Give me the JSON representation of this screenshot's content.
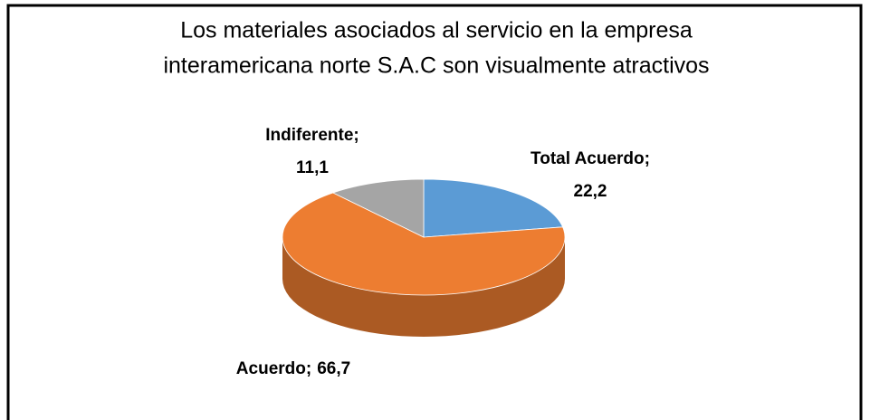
{
  "chart_data": {
    "type": "pie",
    "title": [
      "Los materiales asociados al servicio en la empresa",
      "interamericana norte S.A.C son visualmente atractivos"
    ],
    "categories": [
      "Total Acuerdo;",
      "Acuerdo;",
      "Indiferente;"
    ],
    "values": [
      22.2,
      66.7,
      11.1
    ],
    "value_labels": [
      "22,2",
      "66,7",
      "11,1"
    ],
    "colors": [
      "#5b9bd5",
      "#ed7d31",
      "#a5a5a5"
    ]
  }
}
